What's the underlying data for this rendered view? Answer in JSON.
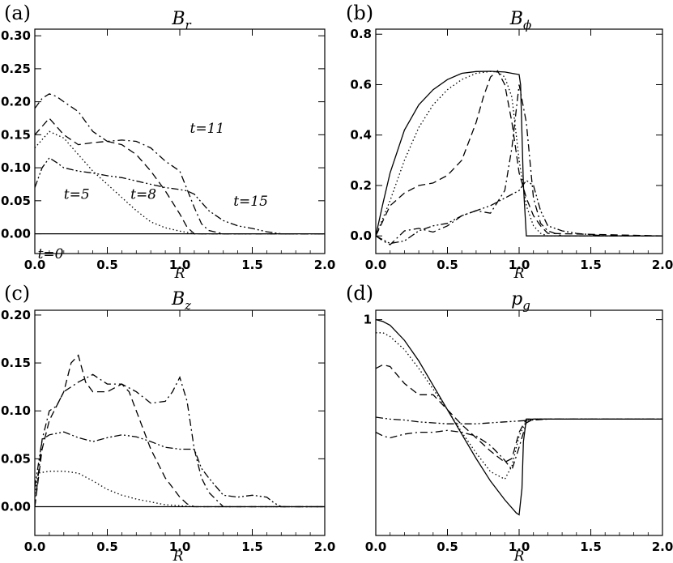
{
  "chart_data": [
    {
      "type": "line",
      "panel": "(a)",
      "title": "B_r",
      "title_main": "B",
      "title_sub": "r",
      "xlabel": "R",
      "xlim": [
        0,
        2
      ],
      "ylim": [
        -0.03,
        0.31
      ],
      "xticks": [
        "0.0",
        "0.5",
        "1.0",
        "1.5",
        "2.0"
      ],
      "yticks": [
        "0.00",
        "0.05",
        "0.10",
        "0.15",
        "0.20",
        "0.25",
        "0.30"
      ],
      "ytick_values": [
        0,
        0.05,
        0.1,
        0.15,
        0.2,
        0.25,
        0.3
      ],
      "annotations": [
        {
          "text": "t=0",
          "x": 0.02,
          "y": -0.03
        },
        {
          "text": "t=5",
          "x": 0.2,
          "y": 0.06
        },
        {
          "text": "t=8",
          "x": 0.66,
          "y": 0.06
        },
        {
          "text": "t=11",
          "x": 1.07,
          "y": 0.16
        },
        {
          "text": "t=15",
          "x": 1.37,
          "y": 0.05
        }
      ],
      "series": [
        {
          "name": "t=0",
          "style": "solid",
          "x": [
            0,
            2
          ],
          "y": [
            0,
            0
          ]
        },
        {
          "name": "t=5",
          "style": "dotted",
          "x": [
            0,
            0.1,
            0.2,
            0.3,
            0.4,
            0.5,
            0.6,
            0.7,
            0.8,
            0.9,
            1.0,
            1.05,
            1.1,
            1.2,
            2.0
          ],
          "y": [
            0.13,
            0.155,
            0.145,
            0.12,
            0.095,
            0.075,
            0.055,
            0.035,
            0.018,
            0.009,
            0.004,
            0.002,
            0,
            0,
            0
          ]
        },
        {
          "name": "t=8",
          "style": "dashed",
          "x": [
            0,
            0.1,
            0.2,
            0.3,
            0.4,
            0.5,
            0.6,
            0.7,
            0.8,
            0.9,
            1.0,
            1.05,
            1.1,
            1.2,
            2.0
          ],
          "y": [
            0.15,
            0.175,
            0.15,
            0.135,
            0.138,
            0.14,
            0.135,
            0.12,
            0.095,
            0.065,
            0.03,
            0.01,
            0,
            0,
            0
          ]
        },
        {
          "name": "t=11",
          "style": "dashdot",
          "x": [
            0,
            0.05,
            0.1,
            0.15,
            0.2,
            0.3,
            0.4,
            0.5,
            0.6,
            0.7,
            0.8,
            0.9,
            1.0,
            1.1,
            1.15,
            1.2,
            1.3,
            2.0
          ],
          "y": [
            0.19,
            0.205,
            0.212,
            0.208,
            0.2,
            0.185,
            0.155,
            0.14,
            0.142,
            0.14,
            0.13,
            0.11,
            0.095,
            0.04,
            0.015,
            0.005,
            0,
            0
          ]
        },
        {
          "name": "t=15",
          "style": "dashdotdot",
          "x": [
            0,
            0.05,
            0.1,
            0.15,
            0.2,
            0.3,
            0.4,
            0.5,
            0.6,
            0.7,
            0.8,
            0.9,
            1.0,
            1.05,
            1.1,
            1.2,
            1.3,
            1.4,
            1.5,
            1.6,
            1.7,
            2.0
          ],
          "y": [
            0.07,
            0.1,
            0.115,
            0.108,
            0.1,
            0.095,
            0.092,
            0.088,
            0.085,
            0.08,
            0.075,
            0.07,
            0.067,
            0.065,
            0.06,
            0.035,
            0.02,
            0.012,
            0.008,
            0.003,
            0,
            0
          ]
        }
      ]
    },
    {
      "type": "line",
      "panel": "(b)",
      "title": "B_ϕ",
      "title_main": "B",
      "title_sub": "ϕ",
      "xlabel": "R",
      "xlim": [
        0,
        2
      ],
      "ylim": [
        -0.07,
        0.82
      ],
      "xticks": [
        "0.0",
        "0.5",
        "1.0",
        "1.5",
        "2.0"
      ],
      "yticks": [
        "0.0",
        "0.2",
        "0.4",
        "0.6",
        "0.8"
      ],
      "ytick_values": [
        0,
        0.2,
        0.4,
        0.6,
        0.8
      ],
      "series": [
        {
          "name": "t=0",
          "style": "solid",
          "x": [
            0,
            0.05,
            0.1,
            0.2,
            0.3,
            0.4,
            0.5,
            0.6,
            0.7,
            0.8,
            0.9,
            0.95,
            1.0,
            1.01,
            1.03,
            1.05,
            2.0
          ],
          "y": [
            0,
            0.13,
            0.25,
            0.42,
            0.52,
            0.58,
            0.62,
            0.645,
            0.652,
            0.653,
            0.65,
            0.645,
            0.64,
            0.6,
            0.2,
            0,
            0
          ]
        },
        {
          "name": "t=5",
          "style": "dotted",
          "x": [
            0,
            0.1,
            0.2,
            0.3,
            0.4,
            0.5,
            0.6,
            0.7,
            0.8,
            0.85,
            0.9,
            0.95,
            1.0,
            1.05,
            1.1,
            1.15,
            1.2,
            2.0
          ],
          "y": [
            0,
            0.14,
            0.3,
            0.43,
            0.52,
            0.58,
            0.62,
            0.645,
            0.652,
            0.65,
            0.63,
            0.55,
            0.3,
            0.12,
            0.04,
            0.01,
            0,
            0
          ]
        },
        {
          "name": "t=8",
          "style": "dashed",
          "x": [
            0,
            0.1,
            0.2,
            0.3,
            0.4,
            0.5,
            0.6,
            0.7,
            0.75,
            0.8,
            0.85,
            0.9,
            0.95,
            1.0,
            1.05,
            1.1,
            1.15,
            1.2,
            2.0
          ],
          "y": [
            0,
            0.12,
            0.17,
            0.2,
            0.21,
            0.24,
            0.3,
            0.45,
            0.55,
            0.63,
            0.655,
            0.6,
            0.45,
            0.25,
            0.15,
            0.08,
            0.04,
            0.01,
            0
          ]
        },
        {
          "name": "t=11",
          "style": "dashdot",
          "x": [
            0,
            0.05,
            0.1,
            0.2,
            0.3,
            0.4,
            0.5,
            0.6,
            0.7,
            0.8,
            0.9,
            0.95,
            1.0,
            1.05,
            1.1,
            1.15,
            1.2,
            1.3,
            2.0
          ],
          "y": [
            0,
            -0.02,
            -0.035,
            0.02,
            0.03,
            0.015,
            0.04,
            0.08,
            0.1,
            0.09,
            0.18,
            0.35,
            0.6,
            0.45,
            0.15,
            0.05,
            0.02,
            0,
            0
          ]
        },
        {
          "name": "t=15",
          "style": "dashdotdot",
          "x": [
            0,
            0.1,
            0.2,
            0.3,
            0.4,
            0.5,
            0.6,
            0.7,
            0.8,
            0.9,
            1.0,
            1.05,
            1.1,
            1.15,
            1.2,
            1.3,
            1.4,
            1.5,
            1.6,
            2.0
          ],
          "y": [
            0,
            -0.03,
            -0.02,
            0.02,
            0.04,
            0.05,
            0.08,
            0.1,
            0.12,
            0.15,
            0.18,
            0.22,
            0.2,
            0.1,
            0.04,
            0.02,
            0.01,
            0.005,
            0,
            0
          ]
        }
      ]
    },
    {
      "type": "line",
      "panel": "(c)",
      "title": "B_z",
      "title_main": "B",
      "title_sub": "z",
      "xlabel": "R",
      "xlim": [
        0,
        2
      ],
      "ylim": [
        -0.03,
        0.205
      ],
      "xticks": [
        "0.0",
        "0.5",
        "1.0",
        "1.5",
        "2.0"
      ],
      "yticks": [
        "0.00",
        "0.05",
        "0.10",
        "0.15",
        "0.20"
      ],
      "ytick_values": [
        0,
        0.05,
        0.1,
        0.15,
        0.2
      ],
      "series": [
        {
          "name": "t=0",
          "style": "solid",
          "x": [
            0,
            2
          ],
          "y": [
            0,
            0
          ]
        },
        {
          "name": "t=5",
          "style": "dotted",
          "x": [
            0,
            0.02,
            0.1,
            0.2,
            0.3,
            0.4,
            0.5,
            0.6,
            0.7,
            0.8,
            0.9,
            1.0,
            1.1,
            2.0
          ],
          "y": [
            0.01,
            0.035,
            0.037,
            0.037,
            0.035,
            0.027,
            0.018,
            0.012,
            0.008,
            0.005,
            0.002,
            0.001,
            0,
            0
          ]
        },
        {
          "name": "t=8",
          "style": "dashed",
          "x": [
            0,
            0.05,
            0.1,
            0.2,
            0.25,
            0.3,
            0.35,
            0.4,
            0.5,
            0.6,
            0.65,
            0.7,
            0.8,
            0.9,
            1.0,
            1.05,
            1.1,
            2.0
          ],
          "y": [
            0,
            0.06,
            0.09,
            0.12,
            0.15,
            0.158,
            0.13,
            0.12,
            0.12,
            0.128,
            0.12,
            0.1,
            0.06,
            0.03,
            0.01,
            0.003,
            0,
            0
          ]
        },
        {
          "name": "t=11",
          "style": "dashdot",
          "x": [
            0,
            0.05,
            0.1,
            0.15,
            0.2,
            0.3,
            0.4,
            0.5,
            0.6,
            0.7,
            0.8,
            0.9,
            0.95,
            1.0,
            1.05,
            1.1,
            1.15,
            1.2,
            1.3,
            2.0
          ],
          "y": [
            0,
            0.07,
            0.1,
            0.105,
            0.12,
            0.13,
            0.138,
            0.128,
            0.128,
            0.12,
            0.108,
            0.11,
            0.12,
            0.135,
            0.11,
            0.06,
            0.03,
            0.015,
            0,
            0
          ]
        },
        {
          "name": "t=15",
          "style": "dashdotdot",
          "x": [
            0,
            0.05,
            0.1,
            0.2,
            0.3,
            0.4,
            0.5,
            0.6,
            0.7,
            0.8,
            0.9,
            1.0,
            1.1,
            1.15,
            1.2,
            1.3,
            1.4,
            1.5,
            1.6,
            1.65,
            1.7,
            2.0
          ],
          "y": [
            0.02,
            0.07,
            0.075,
            0.078,
            0.072,
            0.068,
            0.072,
            0.075,
            0.073,
            0.068,
            0.062,
            0.06,
            0.06,
            0.04,
            0.03,
            0.012,
            0.01,
            0.012,
            0.01,
            0.004,
            0,
            0
          ]
        }
      ]
    },
    {
      "type": "line",
      "panel": "(d)",
      "title": "p_g",
      "title_main": "p",
      "title_sub": "g",
      "xlabel": "R",
      "xlim": [
        0,
        2
      ],
      "ylim": [
        -0.15,
        1.05
      ],
      "xticks": [
        "0.0",
        "0.5",
        "1.0",
        "1.5",
        "2.0"
      ],
      "yticks": [
        "1"
      ],
      "ytick_values": [
        1
      ],
      "series": [
        {
          "name": "t=0",
          "style": "solid",
          "x": [
            0,
            0.05,
            0.1,
            0.2,
            0.3,
            0.4,
            0.5,
            0.6,
            0.7,
            0.8,
            0.9,
            0.98,
            1.0,
            1.02,
            1.03,
            1.05,
            2.0
          ],
          "y": [
            1.0,
            0.99,
            0.97,
            0.89,
            0.78,
            0.65,
            0.52,
            0.39,
            0.26,
            0.14,
            0.04,
            -0.03,
            -0.04,
            0.1,
            0.35,
            0.47,
            0.47
          ]
        },
        {
          "name": "t=5",
          "style": "dotted",
          "x": [
            0,
            0.05,
            0.1,
            0.2,
            0.3,
            0.4,
            0.5,
            0.6,
            0.7,
            0.8,
            0.9,
            0.95,
            1.0,
            1.05,
            1.1,
            2.0
          ],
          "y": [
            0.93,
            0.93,
            0.91,
            0.84,
            0.74,
            0.63,
            0.52,
            0.4,
            0.29,
            0.19,
            0.15,
            0.22,
            0.38,
            0.46,
            0.47,
            0.47
          ]
        },
        {
          "name": "t=8",
          "style": "dashed",
          "x": [
            0,
            0.05,
            0.1,
            0.2,
            0.3,
            0.4,
            0.5,
            0.6,
            0.7,
            0.8,
            0.9,
            0.95,
            1.0,
            1.05,
            1.1,
            2.0
          ],
          "y": [
            0.74,
            0.76,
            0.75,
            0.66,
            0.6,
            0.6,
            0.52,
            0.44,
            0.37,
            0.3,
            0.24,
            0.26,
            0.4,
            0.47,
            0.47,
            0.47
          ]
        },
        {
          "name": "t=11",
          "style": "dashdot",
          "x": [
            0,
            0.05,
            0.1,
            0.2,
            0.3,
            0.4,
            0.5,
            0.6,
            0.7,
            0.8,
            0.9,
            0.95,
            1.0,
            1.05,
            1.1,
            2.0
          ],
          "y": [
            0.4,
            0.38,
            0.37,
            0.39,
            0.4,
            0.4,
            0.41,
            0.4,
            0.38,
            0.33,
            0.25,
            0.2,
            0.32,
            0.45,
            0.47,
            0.47
          ]
        },
        {
          "name": "t=15",
          "style": "dashdotdot",
          "x": [
            0,
            0.1,
            0.2,
            0.3,
            0.4,
            0.5,
            0.6,
            0.7,
            0.8,
            0.9,
            1.0,
            1.1,
            1.2,
            2.0
          ],
          "y": [
            0.48,
            0.47,
            0.465,
            0.455,
            0.45,
            0.445,
            0.445,
            0.445,
            0.45,
            0.455,
            0.46,
            0.465,
            0.47,
            0.47
          ]
        }
      ]
    }
  ]
}
